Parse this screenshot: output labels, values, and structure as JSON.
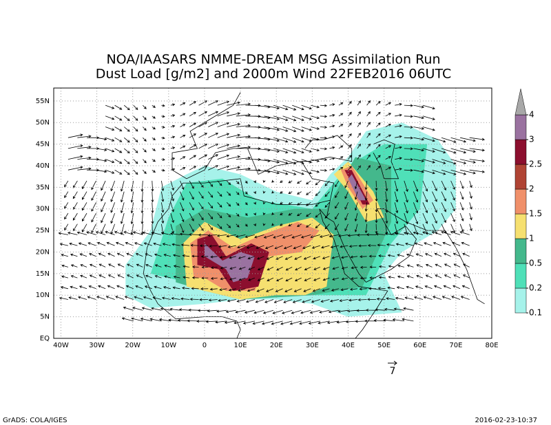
{
  "chart_data": {
    "type": "map",
    "title": "NOA/IAASARS NMME-DREAM MSG Assimilation Run",
    "subtitle": "Dust Load [g/m2] and 2000m Wind 22FEB2016 06UTC",
    "xlim": [
      -42,
      80
    ],
    "ylim": [
      0,
      58
    ],
    "xticks": [
      {
        "value": -40,
        "label": "40W"
      },
      {
        "value": -30,
        "label": "30W"
      },
      {
        "value": -20,
        "label": "20W"
      },
      {
        "value": -10,
        "label": "10W"
      },
      0,
      {
        "value": 10,
        "label": "10E"
      },
      {
        "value": 20,
        "label": "20E"
      },
      {
        "value": 30,
        "label": "30E"
      },
      {
        "value": 40,
        "label": "40E"
      },
      {
        "value": 50,
        "label": "50E"
      },
      {
        "value": 60,
        "label": "60E"
      },
      {
        "value": 70,
        "label": "70E"
      },
      {
        "value": 80,
        "label": "80E"
      }
    ],
    "yticks": [
      {
        "value": 0,
        "label": "EQ"
      },
      {
        "value": 5,
        "label": "5N"
      },
      {
        "value": 10,
        "label": "10N"
      },
      {
        "value": 15,
        "label": "15N"
      },
      {
        "value": 20,
        "label": "20N"
      },
      {
        "value": 25,
        "label": "25N"
      },
      {
        "value": 30,
        "label": "30N"
      },
      {
        "value": 35,
        "label": "35N"
      },
      {
        "value": 40,
        "label": "40N"
      },
      {
        "value": 45,
        "label": "45N"
      },
      {
        "value": 50,
        "label": "50N"
      },
      {
        "value": 55,
        "label": "55N"
      }
    ],
    "grid": true,
    "colorbar": {
      "levels": [
        0.1,
        0.2,
        0.5,
        1,
        1.5,
        2,
        2.5,
        3,
        4
      ],
      "colors": [
        "#a6f2ea",
        "#4fe0b8",
        "#44b88c",
        "#f6e070",
        "#f0906a",
        "#b04434",
        "#8c0f2e",
        "#9a72a0",
        "#a8a8a8"
      ]
    },
    "wind_reference": "7",
    "footer_left": "GrADS: COLA/IGES",
    "footer_right": "2016-02-23-10:37"
  }
}
